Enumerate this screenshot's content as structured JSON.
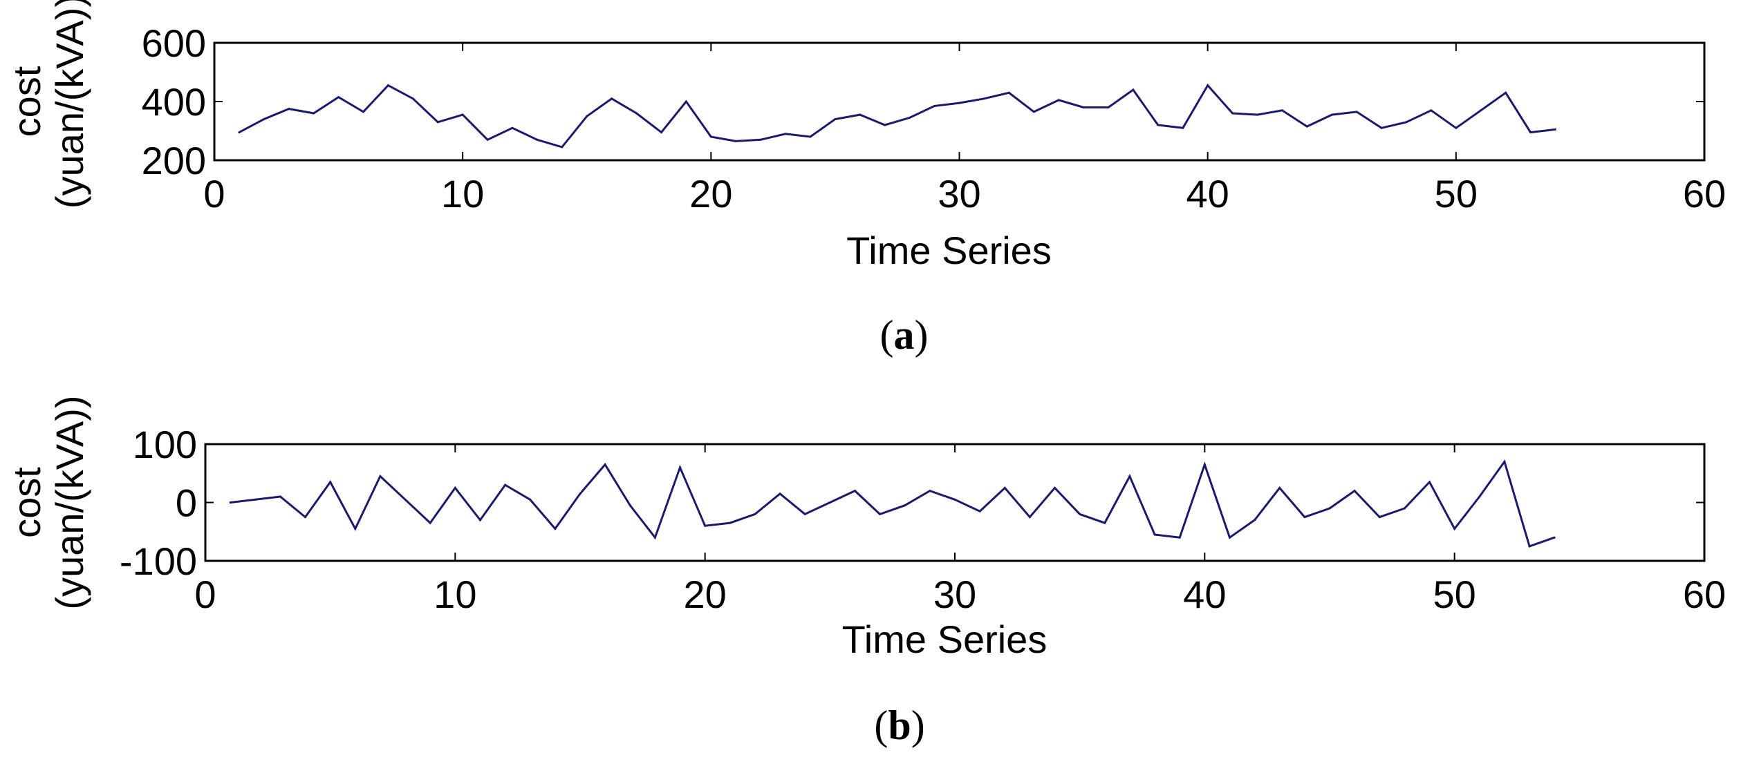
{
  "chart_data": [
    {
      "type": "line",
      "panel_label": "a",
      "xlabel": "Time Series",
      "ylabel_line1": "cost",
      "ylabel_line2": "(yuan/(kVA))",
      "xlim": [
        0,
        60
      ],
      "ylim": [
        200,
        600
      ],
      "xticks": [
        0,
        10,
        20,
        30,
        40,
        50,
        60
      ],
      "yticks": [
        200,
        400,
        600
      ],
      "grid": false,
      "line_color": "#1a1a6e",
      "x": [
        1,
        2,
        3,
        4,
        5,
        6,
        7,
        8,
        9,
        10,
        11,
        12,
        13,
        14,
        15,
        16,
        17,
        18,
        19,
        20,
        21,
        22,
        23,
        24,
        25,
        26,
        27,
        28,
        29,
        30,
        31,
        32,
        33,
        34,
        35,
        36,
        37,
        38,
        39,
        40,
        41,
        42,
        43,
        44,
        45,
        46,
        47,
        48,
        49,
        50,
        51,
        52,
        53,
        54
      ],
      "series": [
        {
          "values": [
            295,
            340,
            375,
            360,
            415,
            365,
            455,
            410,
            330,
            355,
            270,
            310,
            270,
            245,
            350,
            410,
            360,
            295,
            400,
            280,
            265,
            270,
            290,
            280,
            340,
            355,
            320,
            345,
            385,
            395,
            410,
            430,
            365,
            405,
            380,
            380,
            440,
            320,
            310,
            455,
            360,
            355,
            370,
            315,
            355,
            365,
            310,
            330,
            370,
            310,
            370,
            430,
            295,
            305
          ]
        }
      ]
    },
    {
      "type": "line",
      "panel_label": "b",
      "xlabel": "Time Series",
      "ylabel_line1": "cost",
      "ylabel_line2": "(yuan/(kVA))",
      "xlim": [
        0,
        60
      ],
      "ylim": [
        -100,
        100
      ],
      "xticks": [
        0,
        10,
        20,
        30,
        40,
        50,
        60
      ],
      "yticks": [
        -100,
        0,
        100
      ],
      "grid": false,
      "line_color": "#1a1a6e",
      "x": [
        1,
        2,
        3,
        4,
        5,
        6,
        7,
        8,
        9,
        10,
        11,
        12,
        13,
        14,
        15,
        16,
        17,
        18,
        19,
        20,
        21,
        22,
        23,
        24,
        25,
        26,
        27,
        28,
        29,
        30,
        31,
        32,
        33,
        34,
        35,
        36,
        37,
        38,
        39,
        40,
        41,
        42,
        43,
        44,
        45,
        46,
        47,
        48,
        49,
        50,
        51,
        52,
        53,
        54
      ],
      "series": [
        {
          "values": [
            0,
            5,
            10,
            -25,
            35,
            -45,
            45,
            5,
            -35,
            25,
            -30,
            30,
            5,
            -45,
            15,
            65,
            -5,
            -60,
            60,
            -40,
            -35,
            -20,
            15,
            -20,
            0,
            20,
            -20,
            -5,
            20,
            5,
            -15,
            25,
            -25,
            25,
            -20,
            -35,
            45,
            -55,
            -60,
            65,
            -60,
            -30,
            25,
            -25,
            -10,
            20,
            -25,
            -10,
            35,
            -45,
            10,
            70,
            -75,
            -60
          ]
        }
      ]
    }
  ]
}
